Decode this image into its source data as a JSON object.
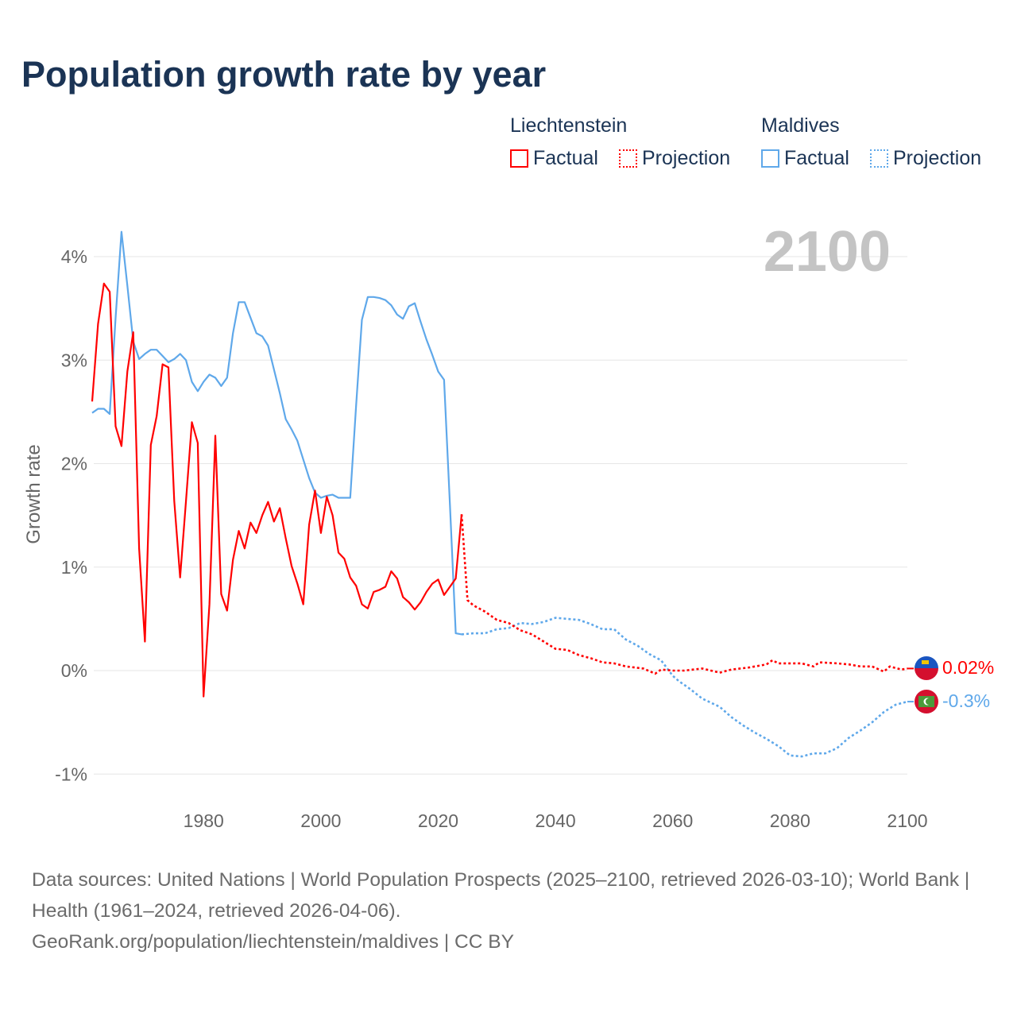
{
  "title": "Population growth rate by year",
  "legend": {
    "groups": [
      {
        "name": "Liechtenstein",
        "color": "#ff0000",
        "factual": "Factual",
        "projection": "Projection"
      },
      {
        "name": "Maldives",
        "color": "#5fa8ea",
        "factual": "Factual",
        "projection": "Projection"
      }
    ]
  },
  "chart_data": {
    "type": "line",
    "title": "Population growth rate by year",
    "xlabel": "",
    "ylabel": "Growth rate",
    "year_watermark": "2100",
    "xlim": [
      1961,
      2100
    ],
    "ylim": [
      -1.3,
      4.4
    ],
    "xticks": [
      1980,
      2000,
      2020,
      2040,
      2060,
      2080,
      2100
    ],
    "yticks": [
      {
        "value": 4,
        "label": "4%"
      },
      {
        "value": 3,
        "label": "3%"
      },
      {
        "value": 2,
        "label": "2%"
      },
      {
        "value": 1,
        "label": "1%"
      },
      {
        "value": 0,
        "label": "0%"
      },
      {
        "value": -1,
        "label": "-1%"
      }
    ],
    "grid": true,
    "series": [
      {
        "name": "Liechtenstein Factual",
        "color": "#ff0000",
        "style": "solid",
        "x": [
          1961,
          1962,
          1963,
          1964,
          1965,
          1966,
          1967,
          1968,
          1969,
          1970,
          1971,
          1972,
          1973,
          1974,
          1975,
          1976,
          1977,
          1978,
          1979,
          1980,
          1981,
          1982,
          1983,
          1984,
          1985,
          1986,
          1987,
          1988,
          1989,
          1990,
          1991,
          1992,
          1993,
          1994,
          1995,
          1996,
          1997,
          1998,
          1999,
          2000,
          2001,
          2002,
          2003,
          2004,
          2005,
          2006,
          2007,
          2008,
          2009,
          2010,
          2011,
          2012,
          2013,
          2014,
          2015,
          2016,
          2017,
          2018,
          2019,
          2020,
          2021,
          2022,
          2023,
          2024
        ],
        "y": [
          2.6,
          3.35,
          3.74,
          3.66,
          2.36,
          2.17,
          2.89,
          3.27,
          1.18,
          0.28,
          2.18,
          2.46,
          2.96,
          2.93,
          1.64,
          0.9,
          1.64,
          2.4,
          2.2,
          -0.25,
          0.64,
          2.27,
          0.74,
          0.58,
          1.07,
          1.35,
          1.18,
          1.43,
          1.33,
          1.5,
          1.63,
          1.44,
          1.57,
          1.28,
          1.01,
          0.84,
          0.64,
          1.41,
          1.74,
          1.33,
          1.68,
          1.5,
          1.14,
          1.08,
          0.9,
          0.82,
          0.64,
          0.6,
          0.76,
          0.78,
          0.81,
          0.96,
          0.89,
          0.71,
          0.66,
          0.59,
          0.66,
          0.76,
          0.84,
          0.88,
          0.73,
          0.81,
          0.89,
          1.51
        ]
      },
      {
        "name": "Liechtenstein Projection",
        "color": "#ff0000",
        "style": "dotted",
        "x": [
          2024,
          2025,
          2026,
          2027,
          2028,
          2030,
          2032,
          2034,
          2036,
          2038,
          2040,
          2042,
          2044,
          2046,
          2048,
          2050,
          2052,
          2055,
          2057,
          2058,
          2060,
          2062,
          2065,
          2068,
          2070,
          2073,
          2076,
          2077,
          2078,
          2082,
          2084,
          2085,
          2088,
          2090,
          2092,
          2094,
          2096,
          2097,
          2099,
          2100
        ],
        "y": [
          1.51,
          0.68,
          0.63,
          0.6,
          0.57,
          0.49,
          0.46,
          0.39,
          0.35,
          0.28,
          0.21,
          0.2,
          0.15,
          0.12,
          0.08,
          0.07,
          0.04,
          0.02,
          -0.03,
          0.01,
          0.0,
          0.0,
          0.02,
          -0.02,
          0.01,
          0.03,
          0.06,
          0.1,
          0.07,
          0.07,
          0.04,
          0.08,
          0.07,
          0.06,
          0.04,
          0.04,
          -0.01,
          0.04,
          0.01,
          0.02
        ]
      },
      {
        "name": "Maldives Factual",
        "color": "#5fa8ea",
        "style": "solid",
        "x": [
          1961,
          1962,
          1963,
          1964,
          1965,
          1966,
          1967,
          1968,
          1969,
          1970,
          1971,
          1972,
          1973,
          1974,
          1975,
          1976,
          1977,
          1978,
          1979,
          1980,
          1981,
          1982,
          1983,
          1984,
          1985,
          1986,
          1987,
          1988,
          1989,
          1990,
          1991,
          1992,
          1993,
          1994,
          1995,
          1996,
          1997,
          1998,
          1999,
          2000,
          2001,
          2002,
          2003,
          2004,
          2005,
          2006,
          2007,
          2008,
          2009,
          2010,
          2011,
          2012,
          2013,
          2014,
          2015,
          2016,
          2017,
          2018,
          2019,
          2020,
          2021,
          2022,
          2023,
          2024
        ],
        "y": [
          2.49,
          2.53,
          2.53,
          2.48,
          3.41,
          4.24,
          3.72,
          3.18,
          3.01,
          3.06,
          3.1,
          3.1,
          3.04,
          2.98,
          3.01,
          3.06,
          3.0,
          2.79,
          2.7,
          2.79,
          2.86,
          2.83,
          2.75,
          2.83,
          3.26,
          3.56,
          3.56,
          3.41,
          3.26,
          3.23,
          3.14,
          2.91,
          2.68,
          2.43,
          2.33,
          2.22,
          2.04,
          1.86,
          1.72,
          1.67,
          1.69,
          1.7,
          1.67,
          1.67,
          1.67,
          2.56,
          3.39,
          3.61,
          3.61,
          3.6,
          3.58,
          3.53,
          3.44,
          3.4,
          3.52,
          3.55,
          3.37,
          3.2,
          3.05,
          2.89,
          2.81,
          1.6,
          0.36,
          0.35
        ]
      },
      {
        "name": "Maldives Projection",
        "color": "#5fa8ea",
        "style": "dotted",
        "x": [
          2024,
          2026,
          2028,
          2030,
          2032,
          2034,
          2036,
          2038,
          2040,
          2042,
          2044,
          2046,
          2048,
          2050,
          2052,
          2054,
          2056,
          2058,
          2060,
          2061,
          2063,
          2065,
          2068,
          2070,
          2072,
          2074,
          2076,
          2078,
          2080,
          2082,
          2084,
          2086,
          2088,
          2090,
          2092,
          2094,
          2096,
          2098,
          2100
        ],
        "y": [
          0.35,
          0.36,
          0.36,
          0.4,
          0.41,
          0.46,
          0.45,
          0.47,
          0.51,
          0.5,
          0.49,
          0.45,
          0.4,
          0.4,
          0.3,
          0.24,
          0.16,
          0.1,
          -0.05,
          -0.1,
          -0.18,
          -0.27,
          -0.35,
          -0.45,
          -0.53,
          -0.6,
          -0.66,
          -0.73,
          -0.82,
          -0.83,
          -0.8,
          -0.8,
          -0.75,
          -0.65,
          -0.58,
          -0.5,
          -0.4,
          -0.33,
          -0.3
        ]
      }
    ],
    "end_labels": [
      {
        "country": "Liechtenstein",
        "value": 0.02,
        "label": "0.02%",
        "color": "#ff0000"
      },
      {
        "country": "Maldives",
        "value": -0.3,
        "label": "-0.3%",
        "color": "#5fa8ea"
      }
    ]
  },
  "footer": {
    "sources": "Data sources: United Nations | World Population Prospects (2025–2100, retrieved 2026-03-10); World Bank | Health (1961–2024, retrieved 2026-04-06).",
    "attribution": "GeoRank.org/population/liechtenstein/maldives | CC BY"
  }
}
